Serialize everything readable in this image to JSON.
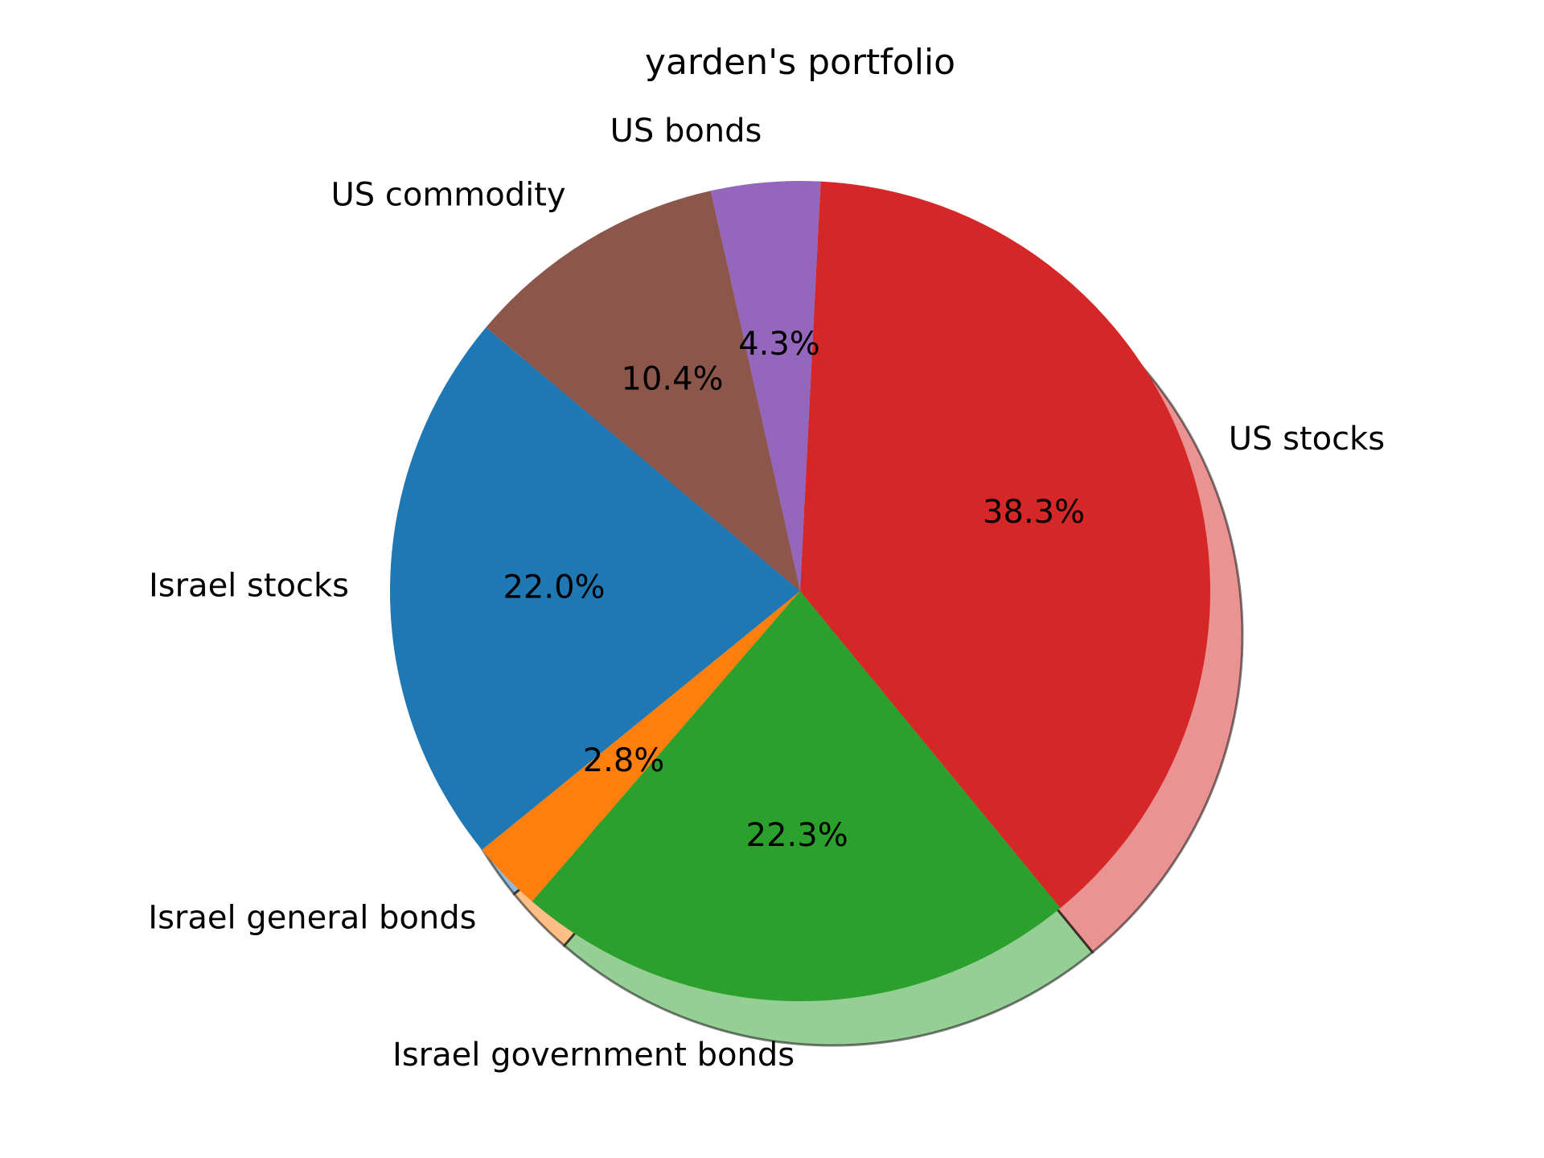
{
  "chart_data": {
    "type": "pie",
    "title": "yarden's portfolio",
    "start_angle_deg": 140,
    "direction": "counterclockwise",
    "shadow": true,
    "slices": [
      {
        "label": "Israel stocks",
        "value": 22.0,
        "pct_label": "22.0%",
        "color": "#1f77b4"
      },
      {
        "label": "Israel general bonds",
        "value": 2.8,
        "pct_label": "2.8%",
        "color": "#ff7f0e"
      },
      {
        "label": "Israel government bonds",
        "value": 22.3,
        "pct_label": "22.3%",
        "color": "#2ca02c"
      },
      {
        "label": "US stocks",
        "value": 38.3,
        "pct_label": "38.3%",
        "color": "#d62728"
      },
      {
        "label": "US bonds",
        "value": 4.3,
        "pct_label": "4.3%",
        "color": "#9467bd"
      },
      {
        "label": "US commodity",
        "value": 10.4,
        "pct_label": "10.4%",
        "color": "#8c564b"
      }
    ]
  }
}
